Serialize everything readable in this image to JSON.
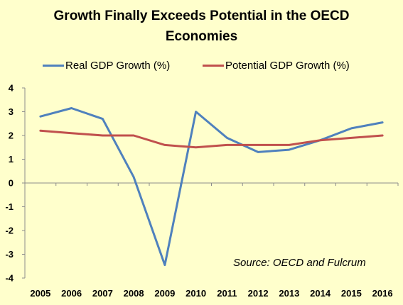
{
  "chart_data": {
    "type": "line",
    "title": "Growth Finally Exceeds Potential in the OECD Economies",
    "title_lines": [
      "Growth Finally Exceeds Potential in the OECD",
      "Economies"
    ],
    "x": [
      "2005",
      "2006",
      "2007",
      "2008",
      "2009",
      "2010",
      "2011",
      "2012",
      "2013",
      "2014",
      "2015",
      "2016"
    ],
    "series": [
      {
        "name": "Real GDP Growth (%)",
        "color": "#4F81BD",
        "values": [
          2.8,
          3.15,
          2.7,
          0.25,
          -3.45,
          3.0,
          1.9,
          1.3,
          1.4,
          1.8,
          2.3,
          2.55
        ]
      },
      {
        "name": "Potential GDP Growth (%)",
        "color": "#C0504D",
        "values": [
          2.2,
          2.1,
          2.0,
          2.0,
          1.6,
          1.5,
          1.6,
          1.6,
          1.6,
          1.8,
          1.9,
          2.0
        ]
      }
    ],
    "ylim": [
      -4,
      4
    ],
    "yticks": [
      "-4",
      "-3",
      "-2",
      "-1",
      "0",
      "1",
      "2",
      "3",
      "4"
    ],
    "xlabel": "",
    "ylabel": "",
    "grid": false,
    "legend_position": "top",
    "annotation": "Source: OECD and Fulcrum",
    "background": "#FFFFCC"
  }
}
